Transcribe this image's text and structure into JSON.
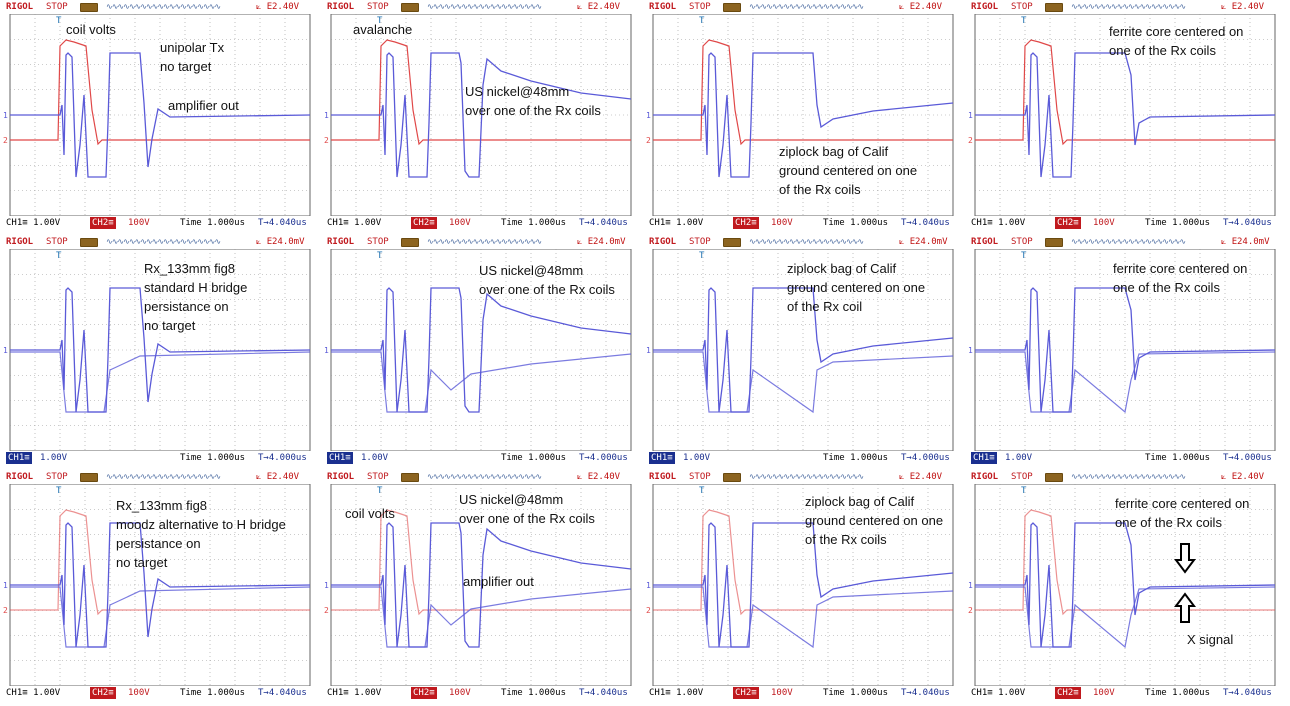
{
  "colors": {
    "ch1": "#5a5ad8",
    "ch2": "#e04848",
    "grid": "#9a9a9a",
    "brand": "#c0191e"
  },
  "scope": {
    "brand": "RIGOL",
    "status": "STOP"
  },
  "panels": [
    {
      "row": 0,
      "col": 0,
      "mode": "dual",
      "vlevel": "2.40V",
      "ch1": "CH1≡  1.00V",
      "ch2": "CH2≡",
      "ch2v": "100V",
      "time": "Time 1.000us",
      "trigpos": "T→4.040us",
      "variant": "a",
      "ann": [
        "coil volts",
        "unipolar Tx\nno target",
        "amplifier out"
      ],
      "ann_pos": [
        [
          64,
          20
        ],
        [
          158,
          38
        ],
        [
          166,
          96
        ]
      ]
    },
    {
      "row": 0,
      "col": 1,
      "mode": "dual",
      "vlevel": "2.40V",
      "ch1": "CH1≡  1.00V",
      "ch2": "CH2≡",
      "ch2v": "100V",
      "time": "Time 1.000us",
      "trigpos": "T→4.040us",
      "variant": "b",
      "ann": [
        "avalanche",
        "US nickel@48mm\nover one of the Rx coils"
      ],
      "ann_pos": [
        [
          30,
          20
        ],
        [
          142,
          82
        ]
      ]
    },
    {
      "row": 0,
      "col": 2,
      "mode": "dual",
      "vlevel": "2.40V",
      "ch1": "CH1≡  1.00V",
      "ch2": "CH2≡",
      "ch2v": "100V",
      "time": "Time 1.000us",
      "trigpos": "T→4.040us",
      "variant": "c",
      "ann": [
        "ziplock bag of Calif\nground centered on one\nof the Rx coils"
      ],
      "ann_pos": [
        [
          134,
          142
        ]
      ]
    },
    {
      "row": 0,
      "col": 3,
      "mode": "dual",
      "vlevel": "2.40V",
      "ch1": "CH1≡  1.00V",
      "ch2": "CH2≡",
      "ch2v": "100V",
      "time": "Time 1.000us",
      "trigpos": "T→4.040us",
      "variant": "d",
      "ann": [
        "ferrite core centered on\none of the Rx coils"
      ],
      "ann_pos": [
        [
          142,
          22
        ]
      ]
    },
    {
      "row": 1,
      "col": 0,
      "mode": "single",
      "vlevel": "24.0mV",
      "ch1": "CH1≡",
      "ch1v": "1.00V",
      "time": "Time 1.000us",
      "trigpos": "T→4.000us",
      "variant": "e",
      "ann": [
        "Rx_133mm fig8\nstandard H bridge\npersistance on\nno target"
      ],
      "ann_pos": [
        [
          142,
          24
        ]
      ]
    },
    {
      "row": 1,
      "col": 1,
      "mode": "single",
      "vlevel": "24.0mV",
      "ch1": "CH1≡",
      "ch1v": "1.00V",
      "time": "Time 1.000us",
      "trigpos": "T→4.000us",
      "variant": "f",
      "ann": [
        "US nickel@48mm\nover one of the Rx coils"
      ],
      "ann_pos": [
        [
          156,
          26
        ]
      ]
    },
    {
      "row": 1,
      "col": 2,
      "mode": "single",
      "vlevel": "24.0mV",
      "ch1": "CH1≡",
      "ch1v": "1.00V",
      "time": "Time 1.000us",
      "trigpos": "T→4.000us",
      "variant": "g",
      "ann": [
        "ziplock bag of Calif\nground centered on one\nof the Rx coil"
      ],
      "ann_pos": [
        [
          142,
          24
        ]
      ]
    },
    {
      "row": 1,
      "col": 3,
      "mode": "single",
      "vlevel": "24.0mV",
      "ch1": "CH1≡",
      "ch1v": "1.00V",
      "time": "Time 1.000us",
      "trigpos": "T→4.000us",
      "variant": "h",
      "ann": [
        "ferrite core centered on\none of the Rx coils"
      ],
      "ann_pos": [
        [
          146,
          24
        ]
      ]
    },
    {
      "row": 2,
      "col": 0,
      "mode": "dual",
      "vlevel": "2.40V",
      "ch1": "CH1≡  1.00V",
      "ch2": "CH2≡",
      "ch2v": "100V",
      "time": "Time 1.000us",
      "trigpos": "T→4.040us",
      "variant": "i",
      "ann": [
        "Rx_133mm fig8\nmoodz alternative to H bridge\npersistance on\nno target"
      ],
      "ann_pos": [
        [
          114,
          26
        ]
      ]
    },
    {
      "row": 2,
      "col": 1,
      "mode": "dual",
      "vlevel": "2.40V",
      "ch1": "CH1≡  1.00V",
      "ch2": "CH2≡",
      "ch2v": "100V",
      "time": "Time 1.000us",
      "trigpos": "T→4.040us",
      "variant": "j",
      "ann": [
        "coil volts",
        "US nickel@48mm\nover one of the Rx coils",
        "amplifier out"
      ],
      "ann_pos": [
        [
          22,
          34
        ],
        [
          136,
          20
        ],
        [
          140,
          102
        ]
      ]
    },
    {
      "row": 2,
      "col": 2,
      "mode": "dual",
      "vlevel": "2.40V",
      "ch1": "CH1≡  1.00V",
      "ch2": "CH2≡",
      "ch2v": "100V",
      "time": "Time 1.000us",
      "trigpos": "T→4.040us",
      "variant": "k",
      "ann": [
        "ziplock bag of Calif\nground centered on one\nof the Rx coils"
      ],
      "ann_pos": [
        [
          160,
          22
        ]
      ]
    },
    {
      "row": 2,
      "col": 3,
      "mode": "dual",
      "vlevel": "2.40V",
      "ch1": "CH1≡  1.00V",
      "ch2": "CH2≡",
      "ch2v": "100V",
      "time": "Time 1.000us",
      "trigpos": "T→4.040us",
      "variant": "l",
      "ann": [
        "ferrite core centered on\none of the Rx coils",
        "X signal"
      ],
      "ann_pos": [
        [
          148,
          24
        ],
        [
          220,
          160
        ]
      ]
    }
  ],
  "chart_data": {
    "type": "line",
    "title": "",
    "xlabel": "",
    "ylabel": "",
    "timebase": "1.000us/div",
    "series": [
      {
        "name": "CH1",
        "scale": "1.00V/div"
      },
      {
        "name": "CH2",
        "scale": "100V/div"
      }
    ],
    "grid": true
  }
}
